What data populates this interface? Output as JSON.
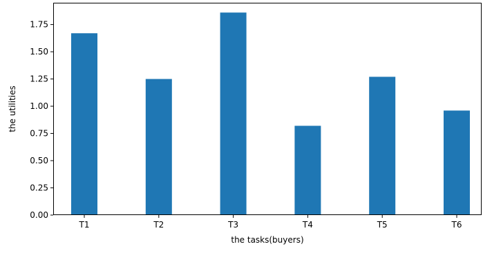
{
  "chart_data": {
    "type": "bar",
    "categories": [
      "T1",
      "T2",
      "T3",
      "T4",
      "T5",
      "T6"
    ],
    "values": [
      1.67,
      1.25,
      1.86,
      0.82,
      1.27,
      0.96
    ],
    "title": "",
    "xlabel": "the tasks(buyers)",
    "ylabel": "the utilities",
    "ylim": [
      0,
      1.95
    ],
    "yticks": [
      0.0,
      0.25,
      0.5,
      0.75,
      1.0,
      1.25,
      1.5,
      1.75
    ],
    "ytick_labels": [
      "0.00",
      "0.25",
      "0.50",
      "0.75",
      "1.00",
      "1.25",
      "1.50",
      "1.75"
    ],
    "bar_color": "#1f77b4",
    "grid": false,
    "legend": "none"
  }
}
